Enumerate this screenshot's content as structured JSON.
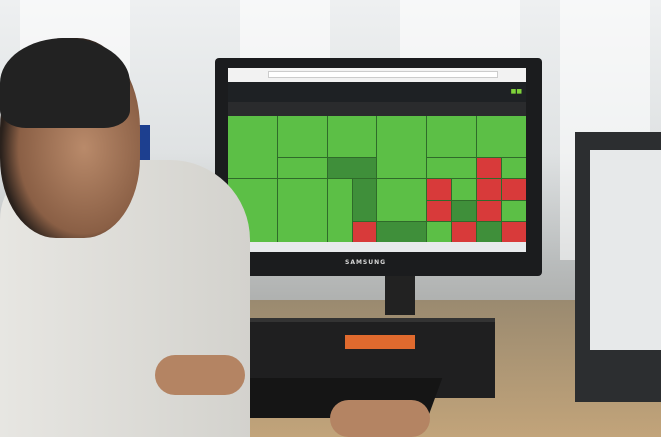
{
  "scene": {
    "description_tags": [
      "office",
      "trader",
      "stock-market-treemap"
    ],
    "monitor_brand": "SAMSUNG",
    "colors": {
      "gain": "#5cbf46",
      "loss": "#d83a3a",
      "shirt": "#e7e6e2"
    }
  }
}
